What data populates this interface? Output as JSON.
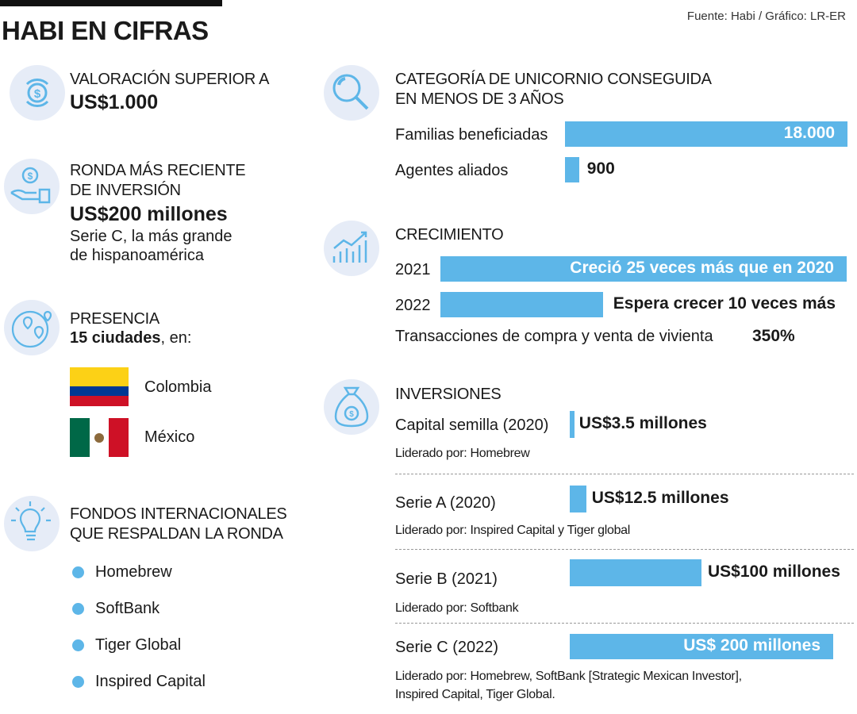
{
  "header": {
    "title": "HABI EN CIFRAS",
    "source": "Fuente: Habi / Gráfico: LR-ER"
  },
  "left": {
    "valuation": {
      "caption": "VALORACIÓN SUPERIOR A",
      "value": "US$1.000"
    },
    "round": {
      "caption1": "RONDA MÁS RECIENTE",
      "caption2": "DE INVERSIÓN",
      "value": "US$200 millones",
      "note1": "Serie C, la más grande",
      "note2": "de hispanoamérica"
    },
    "presence": {
      "caption": "PRESENCIA",
      "cities": "15 ciudades",
      "suffix": ", en:",
      "countries": [
        "Colombia",
        "México"
      ]
    },
    "funds": {
      "caption1": "FONDOS INTERNACIONALES",
      "caption2": "QUE RESPALDAN LA RONDA",
      "items": [
        "Homebrew",
        "SoftBank",
        "Tiger Global",
        "Inspired Capital"
      ]
    }
  },
  "right": {
    "unicorn": {
      "caption1": "CATEGORÍA DE UNICORNIO CONSEGUIDA",
      "caption2": "EN MENOS DE 3 AÑOS"
    },
    "growth": {
      "caption": "CRECIMIENTO",
      "transactions_label": "Transacciones de compra y venta de vivienta",
      "transactions_value": "350%"
    },
    "investments": {
      "caption": "INVERSIONES"
    }
  },
  "colors": {
    "bar": "#5db6e8",
    "icon_bg": "#e6ecf7"
  },
  "chart_data": [
    {
      "type": "bar",
      "title": "CATEGORÍA DE UNICORNIO CONSEGUIDA EN MENOS DE 3 AÑOS",
      "categories": [
        "Familias beneficiadas",
        "Agentes aliados"
      ],
      "values": [
        18000,
        900
      ],
      "labels": [
        "18.000",
        "900"
      ]
    },
    {
      "type": "bar",
      "title": "CRECIMIENTO",
      "categories": [
        "2021",
        "2022"
      ],
      "values": [
        25,
        10
      ],
      "labels": [
        "Creció 25 veces más que en 2020",
        "Espera crecer 10 veces más"
      ]
    },
    {
      "type": "bar",
      "title": "INVERSIONES",
      "categories": [
        "Capital semilla (2020)",
        "Serie A (2020)",
        "Serie B (2021)",
        "Serie C (2022)"
      ],
      "values": [
        3.5,
        12.5,
        100,
        200
      ],
      "labels": [
        "US$3.5 millones",
        "US$12.5 millones",
        "US$100 millones",
        "US$ 200 millones"
      ],
      "leaders": [
        "Liderado por: Homebrew",
        "Liderado por: Inspired Capital y Tiger global",
        "Liderado por: Softbank",
        "Liderado por: Homebrew, SoftBank [Strategic Mexican Investor],",
        "Inspired Capital, Tiger Global."
      ]
    }
  ]
}
